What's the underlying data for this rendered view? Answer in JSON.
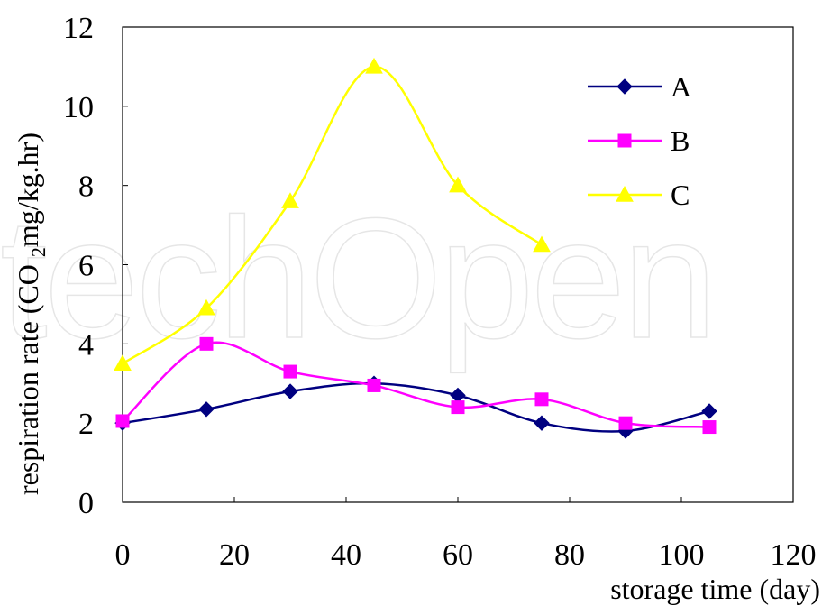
{
  "watermark": "techOpen",
  "chart_data": {
    "type": "line",
    "xlabel": "storage time (day)",
    "ylabel_parts": [
      "respiration rate (CO ",
      "2",
      "mg/kg.hr)"
    ],
    "xlim": [
      0,
      120
    ],
    "ylim": [
      0,
      12
    ],
    "xticks": [
      0,
      20,
      40,
      60,
      80,
      100,
      120
    ],
    "yticks": [
      0,
      2,
      4,
      6,
      8,
      10,
      12
    ],
    "grid": false,
    "legend_position": "top-right",
    "series": [
      {
        "name": "A",
        "color": "#000080",
        "marker": "diamond",
        "x": [
          0,
          15,
          30,
          45,
          60,
          75,
          90,
          105
        ],
        "y": [
          2.0,
          2.35,
          2.8,
          3.0,
          2.7,
          2.0,
          1.8,
          2.3
        ]
      },
      {
        "name": "B",
        "color": "#FF00FF",
        "marker": "square",
        "x": [
          0,
          15,
          30,
          45,
          60,
          75,
          90,
          105
        ],
        "y": [
          2.05,
          4.0,
          3.3,
          2.95,
          2.4,
          2.6,
          2.0,
          1.9
        ]
      },
      {
        "name": "C",
        "color": "#FFFF00",
        "marker": "triangle",
        "x": [
          0,
          15,
          30,
          45,
          60,
          75
        ],
        "y": [
          3.5,
          4.9,
          7.6,
          11.0,
          8.0,
          6.5
        ]
      }
    ]
  }
}
